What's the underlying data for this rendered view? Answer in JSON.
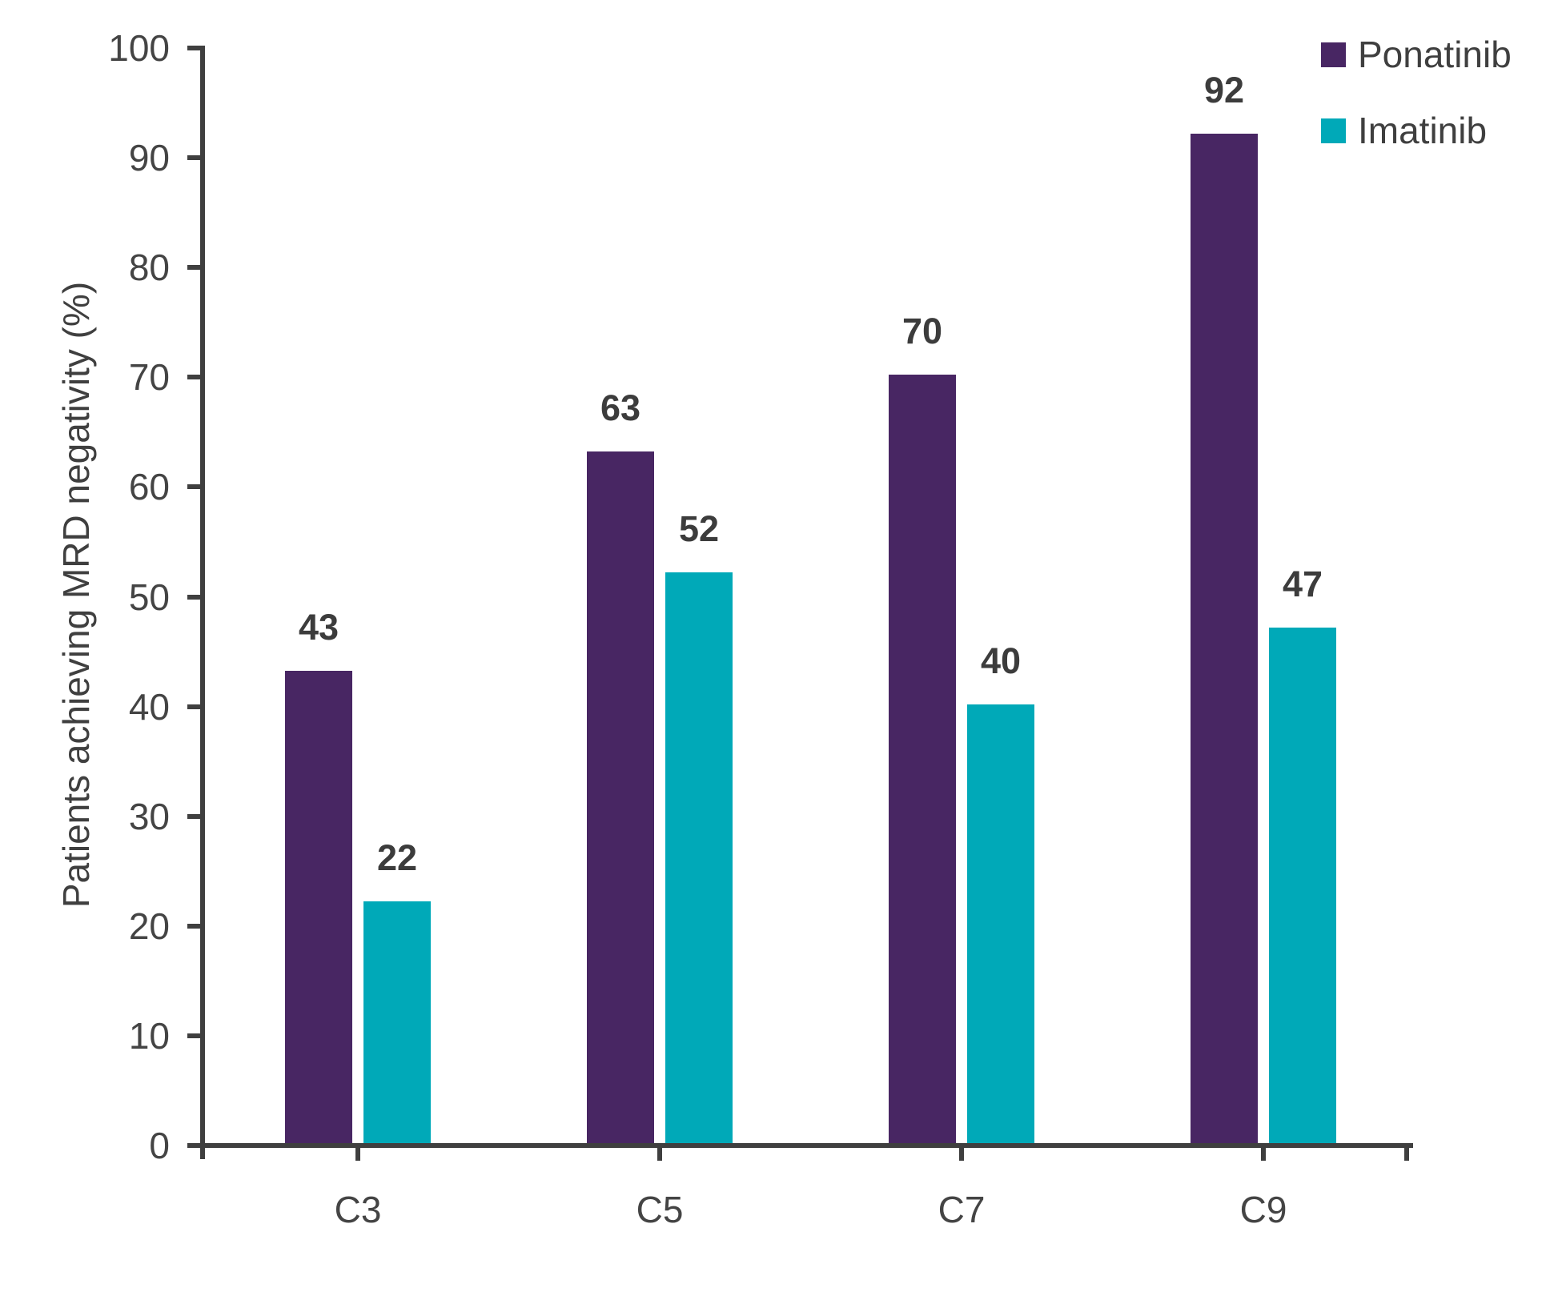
{
  "chart_data": {
    "type": "bar",
    "title": "",
    "xlabel": "",
    "ylabel": "Patients achieving MRD negativity (%)",
    "categories": [
      "C3",
      "C5",
      "C7",
      "C9"
    ],
    "series": [
      {
        "name": "Ponatinib",
        "color": "#482663",
        "values": [
          43,
          63,
          70,
          92
        ]
      },
      {
        "name": "Imatinib",
        "color": "#00A9B8",
        "values": [
          22,
          52,
          40,
          47
        ]
      }
    ],
    "ylim": [
      0,
      100
    ],
    "yticks": [
      0,
      10,
      20,
      30,
      40,
      50,
      60,
      70,
      80,
      90,
      100
    ],
    "grid": false,
    "data_labels": true,
    "legend_position": "top-right"
  },
  "colors": {
    "axis": "#3f3f3f",
    "data_label": "#3c3c3c",
    "tick_label": "#444444"
  }
}
